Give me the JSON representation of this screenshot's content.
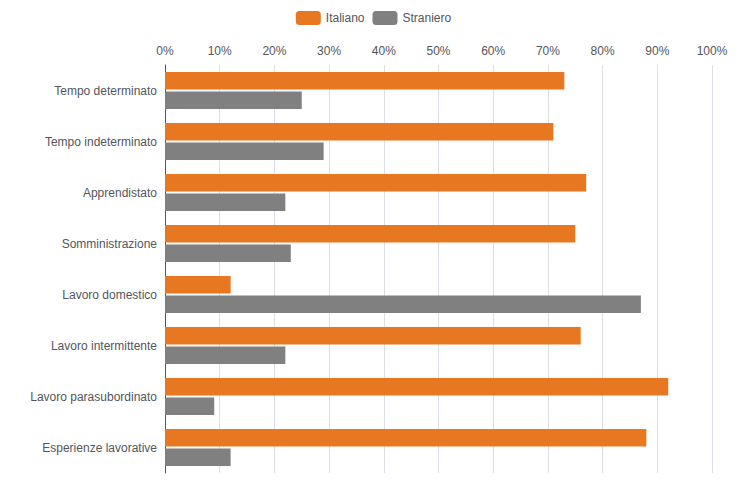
{
  "chart_data": {
    "type": "bar",
    "orientation": "horizontal",
    "categories": [
      "Tempo determinato",
      "Tempo indeterminato",
      "Apprendistato",
      "Somministrazione",
      "Lavoro domestico",
      "Lavoro intermittente",
      "Lavoro parasubordinato",
      "Esperienze lavorative"
    ],
    "series": [
      {
        "name": "Italiano",
        "color": "#E87722",
        "values": [
          73,
          71,
          77,
          75,
          12,
          76,
          92,
          88
        ]
      },
      {
        "name": "Straniero",
        "color": "#808080",
        "values": [
          25,
          29,
          22,
          23,
          87,
          22,
          9,
          12
        ]
      }
    ],
    "xlim": [
      0,
      100
    ],
    "xticks": [
      {
        "value": 0,
        "label": "0%"
      },
      {
        "value": 10,
        "label": "10%"
      },
      {
        "value": 20,
        "label": "20%"
      },
      {
        "value": 30,
        "label": "30%"
      },
      {
        "value": 40,
        "label": "40%"
      },
      {
        "value": 50,
        "label": "50%"
      },
      {
        "value": 60,
        "label": "60%"
      },
      {
        "value": 70,
        "label": "70%"
      },
      {
        "value": 80,
        "label": "80%"
      },
      {
        "value": 90,
        "label": "90%"
      },
      {
        "value": 100,
        "label": "100%"
      }
    ],
    "grid": true,
    "legend": "top"
  }
}
